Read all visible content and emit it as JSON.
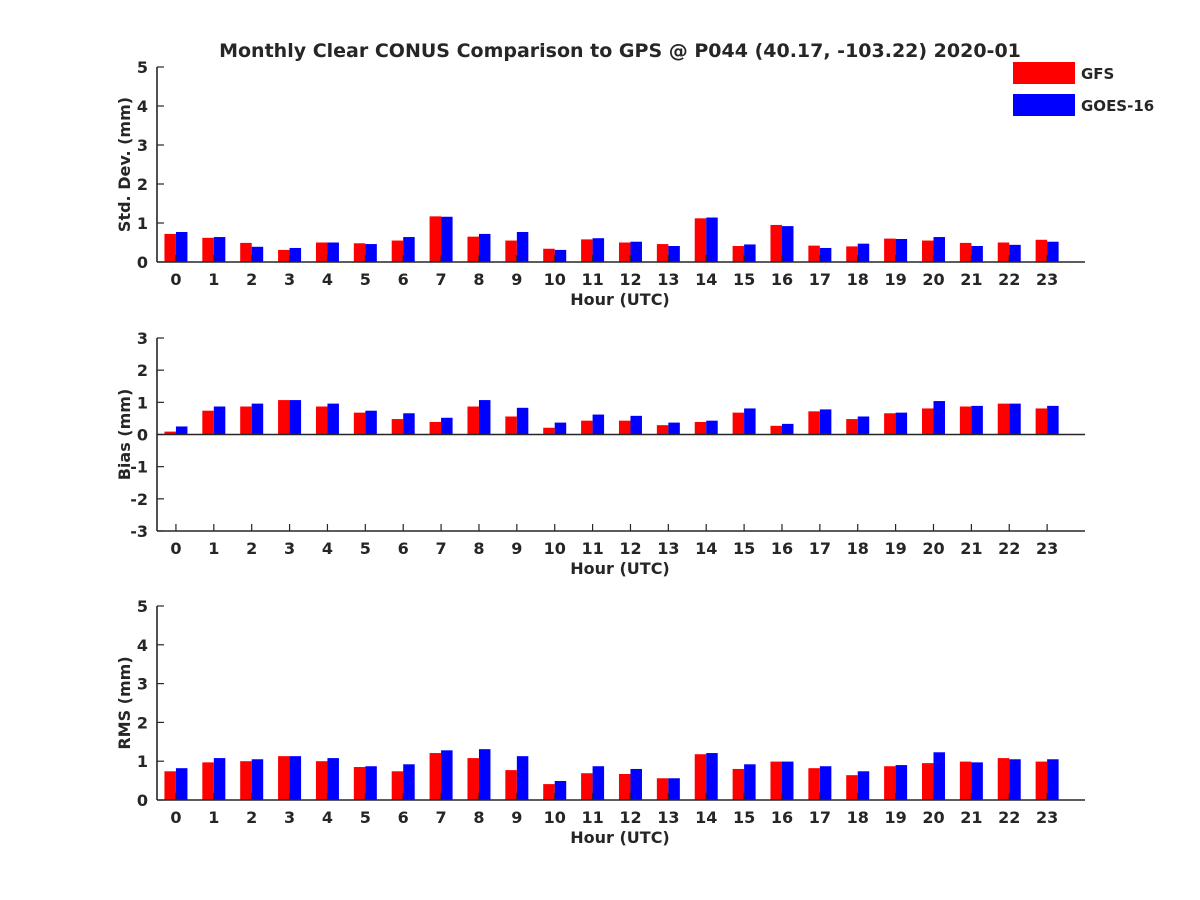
{
  "title": "Monthly Clear CONUS Comparison to GPS @ P044 (40.17, -103.22) 2020-01",
  "colors": {
    "gfs": "#ff0000",
    "goes": "#0000ff",
    "axis": "#262626"
  },
  "legend": {
    "placement": "top-right",
    "entries": [
      "GFS",
      "GOES-16"
    ]
  },
  "chart_data": [
    {
      "type": "bar",
      "ylabel": "Std. Dev. (mm)",
      "xlabel": "Hour (UTC)",
      "ylim": [
        0,
        5
      ],
      "yticks": [
        0,
        1,
        2,
        3,
        4,
        5
      ],
      "categories": [
        "0",
        "1",
        "2",
        "3",
        "4",
        "5",
        "6",
        "7",
        "8",
        "9",
        "10",
        "11",
        "12",
        "13",
        "14",
        "15",
        "16",
        "17",
        "18",
        "19",
        "20",
        "21",
        "22",
        "23"
      ],
      "series": [
        {
          "name": "GFS",
          "values": [
            0.72,
            0.62,
            0.49,
            0.31,
            0.5,
            0.48,
            0.55,
            1.17,
            0.65,
            0.55,
            0.34,
            0.58,
            0.5,
            0.46,
            1.12,
            0.41,
            0.95,
            0.42,
            0.4,
            0.6,
            0.55,
            0.49,
            0.5,
            0.57
          ]
        },
        {
          "name": "GOES-16",
          "values": [
            0.77,
            0.64,
            0.39,
            0.36,
            0.5,
            0.46,
            0.64,
            1.16,
            0.72,
            0.77,
            0.31,
            0.61,
            0.52,
            0.41,
            1.14,
            0.45,
            0.92,
            0.36,
            0.47,
            0.59,
            0.64,
            0.41,
            0.44,
            0.52
          ]
        }
      ]
    },
    {
      "type": "bar",
      "ylabel": "Bias (mm)",
      "xlabel": "Hour (UTC)",
      "ylim": [
        -3,
        3
      ],
      "yticks": [
        -3,
        -2,
        -1,
        0,
        1,
        2,
        3
      ],
      "categories": [
        "0",
        "1",
        "2",
        "3",
        "4",
        "5",
        "6",
        "7",
        "8",
        "9",
        "10",
        "11",
        "12",
        "13",
        "14",
        "15",
        "16",
        "17",
        "18",
        "19",
        "20",
        "21",
        "22",
        "23"
      ],
      "series": [
        {
          "name": "GFS",
          "values": [
            0.09,
            0.74,
            0.87,
            1.07,
            0.87,
            0.68,
            0.48,
            0.39,
            0.87,
            0.56,
            0.21,
            0.43,
            0.43,
            0.29,
            0.39,
            0.68,
            0.27,
            0.72,
            0.48,
            0.66,
            0.81,
            0.87,
            0.96,
            0.81
          ]
        },
        {
          "name": "GOES-16",
          "values": [
            0.25,
            0.87,
            0.96,
            1.07,
            0.96,
            0.74,
            0.66,
            0.52,
            1.07,
            0.83,
            0.37,
            0.62,
            0.58,
            0.37,
            0.43,
            0.81,
            0.33,
            0.78,
            0.56,
            0.68,
            1.04,
            0.89,
            0.96,
            0.89
          ]
        }
      ]
    },
    {
      "type": "bar",
      "ylabel": "RMS (mm)",
      "xlabel": "Hour (UTC)",
      "ylim": [
        0,
        5
      ],
      "yticks": [
        0,
        1,
        2,
        3,
        4,
        5
      ],
      "categories": [
        "0",
        "1",
        "2",
        "3",
        "4",
        "5",
        "6",
        "7",
        "8",
        "9",
        "10",
        "11",
        "12",
        "13",
        "14",
        "15",
        "16",
        "17",
        "18",
        "19",
        "20",
        "21",
        "22",
        "23"
      ],
      "series": [
        {
          "name": "GFS",
          "values": [
            0.74,
            0.97,
            1.0,
            1.13,
            1.0,
            0.85,
            0.74,
            1.21,
            1.08,
            0.77,
            0.41,
            0.69,
            0.67,
            0.56,
            1.18,
            0.8,
            0.99,
            0.82,
            0.64,
            0.87,
            0.95,
            0.99,
            1.08,
            0.99
          ]
        },
        {
          "name": "GOES-16",
          "values": [
            0.82,
            1.08,
            1.05,
            1.13,
            1.08,
            0.87,
            0.92,
            1.28,
            1.31,
            1.13,
            0.49,
            0.87,
            0.8,
            0.56,
            1.21,
            0.92,
            0.99,
            0.87,
            0.74,
            0.9,
            1.23,
            0.97,
            1.05,
            1.05
          ]
        }
      ]
    }
  ]
}
